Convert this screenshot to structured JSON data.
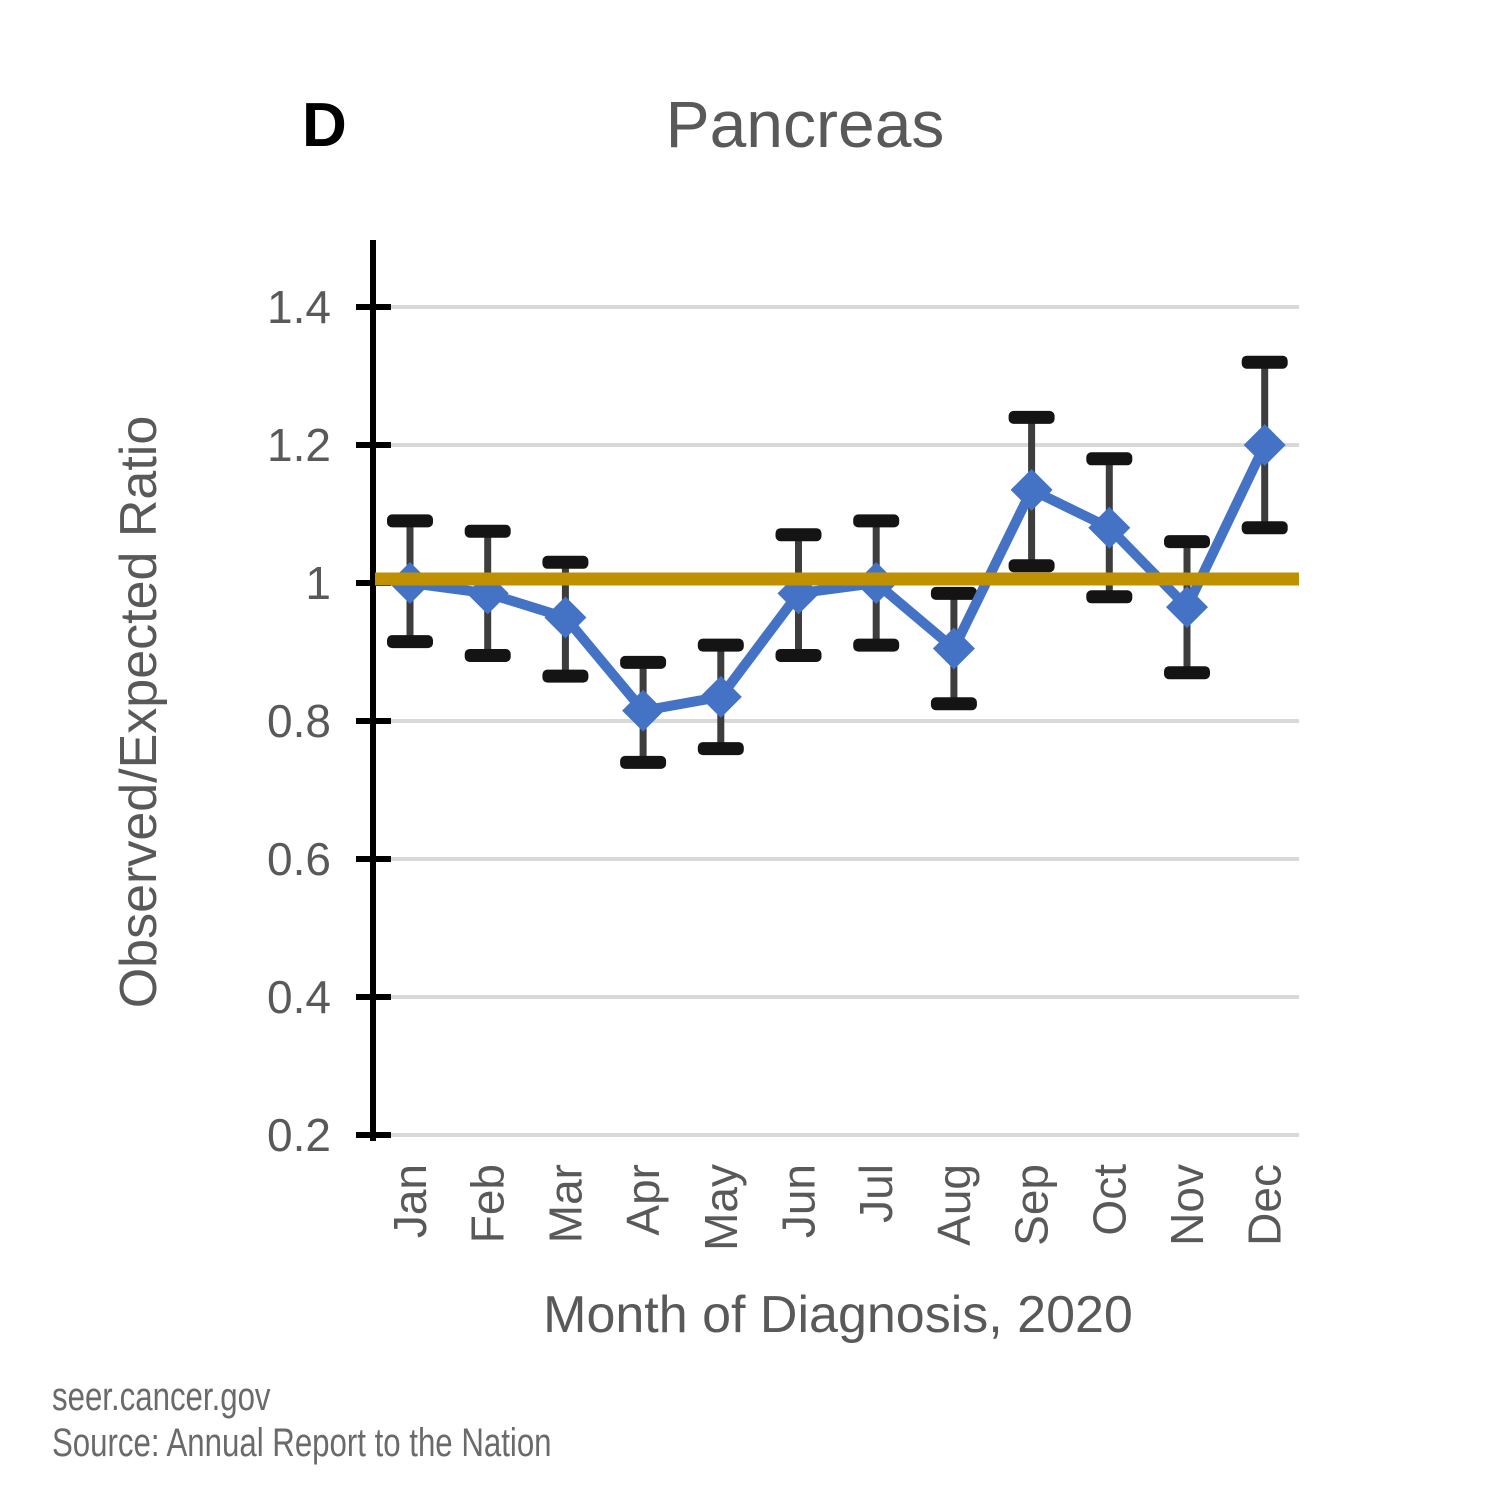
{
  "panel_label": "D",
  "title": "Pancreas",
  "footer": {
    "line1": "seer.cancer.gov",
    "line2": "Source: Annual Report to the Nation"
  },
  "chart_data": {
    "type": "line",
    "title": "Pancreas",
    "xlabel": "Month of Diagnosis, 2020",
    "ylabel": "Observed/Expected Ratio",
    "categories": [
      "Jan",
      "Feb",
      "Mar",
      "Apr",
      "May",
      "Jun",
      "Jul",
      "Aug",
      "Sep",
      "Oct",
      "Nov",
      "Dec"
    ],
    "series": [
      {
        "name": "Observed/Expected Ratio",
        "values": [
          1.0,
          0.985,
          0.95,
          0.815,
          0.835,
          0.985,
          1.0,
          0.905,
          1.135,
          1.08,
          0.965,
          1.2
        ],
        "ci_low": [
          0.915,
          0.895,
          0.865,
          0.74,
          0.76,
          0.895,
          0.91,
          0.825,
          1.025,
          0.98,
          0.87,
          1.08
        ],
        "ci_high": [
          1.09,
          1.075,
          1.03,
          0.885,
          0.91,
          1.07,
          1.09,
          0.985,
          1.24,
          1.18,
          1.06,
          1.32
        ],
        "color": "#4472C4",
        "marker": "diamond"
      }
    ],
    "reference_line": {
      "value": 1.0,
      "color": "#BF9000"
    },
    "ylim": [
      0.2,
      1.5
    ],
    "yticks": [
      0.2,
      0.4,
      0.6,
      0.8,
      1.0,
      1.2,
      1.4
    ],
    "ytick_labels": [
      "0.2",
      "0.4",
      "0.6",
      "0.8",
      "1",
      "1.2",
      "1.4"
    ],
    "grid": true,
    "legend": "none",
    "gridline_color": "#D9D9D9",
    "axis_color": "#000000",
    "error_bar_color": "#3D3D3D",
    "error_cap_color": "#141414",
    "text_color": "#595959"
  }
}
